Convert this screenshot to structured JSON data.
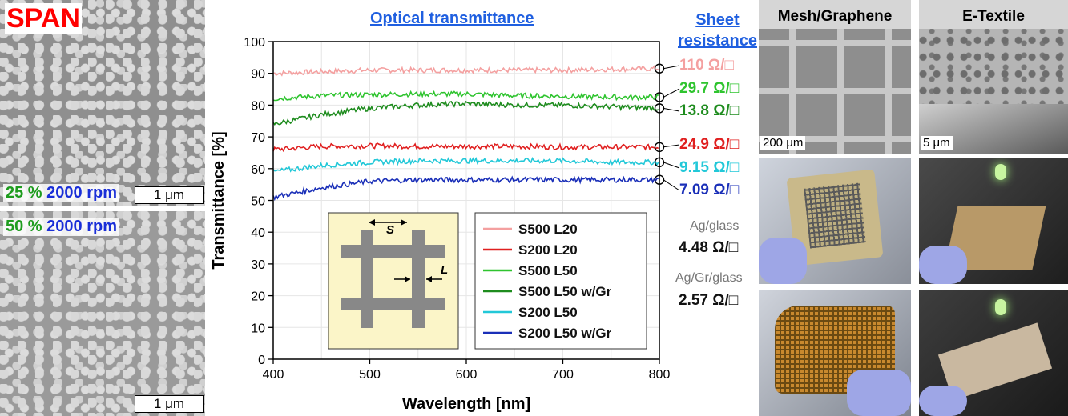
{
  "left": {
    "title": "SPAN",
    "rpm_top": {
      "pct": "25 %",
      "rpm": "2000 rpm"
    },
    "rpm_bottom": {
      "pct": "50 %",
      "rpm": "2000 rpm"
    },
    "scale_top": "1 μm",
    "scale_bottom": "1 μm"
  },
  "headers": {
    "transmittance": "Optical transmittance",
    "sheet_line1": "Sheet",
    "sheet_line2": "resistance"
  },
  "sheet_resistance": [
    {
      "value": "110 Ω/□",
      "color": "#f4a0a0"
    },
    {
      "value": "29.7 Ω/□",
      "color": "#2fc42f"
    },
    {
      "value": "13.8 Ω/□",
      "color": "#1e8c1e"
    },
    {
      "value": "24.9 Ω/□",
      "color": "#e02020"
    },
    {
      "value": "9.15 Ω/□",
      "color": "#22c8d8"
    },
    {
      "value": "7.09 Ω/□",
      "color": "#1a2fb8"
    }
  ],
  "references": [
    {
      "label": "Ag/glass",
      "value": "4.48 Ω/□"
    },
    {
      "label": "Ag/Gr/glass",
      "value": "2.57 Ω/□"
    }
  ],
  "photos": {
    "mesh_title": "Mesh/Graphene",
    "etextile_title": "E-Textile",
    "mesh_scale": "200 μm",
    "etextile_scale": "5 μm"
  },
  "inset": {
    "s_label": "S",
    "l_label": "L"
  },
  "chart_data": {
    "type": "line",
    "xlabel": "Wavelength [nm]",
    "ylabel": "Transmittance [%]",
    "xlim": [
      400,
      800
    ],
    "ylim": [
      0,
      100
    ],
    "xticks": [
      400,
      500,
      600,
      700,
      800
    ],
    "yticks": [
      0,
      10,
      20,
      30,
      40,
      50,
      60,
      70,
      80,
      90,
      100
    ],
    "grid": true,
    "legend_position": "bottom-right",
    "x": [
      400,
      450,
      500,
      550,
      600,
      650,
      700,
      750,
      800
    ],
    "series": [
      {
        "name": "S500 L20",
        "color": "#f4a0a0",
        "values": [
          90,
          90.5,
          91,
          91,
          91,
          91,
          91,
          91.3,
          91.5
        ]
      },
      {
        "name": "S200 L20",
        "color": "#e02020",
        "values": [
          66,
          67,
          67.2,
          67,
          67,
          67,
          66.8,
          66.8,
          66.8
        ]
      },
      {
        "name": "S500 L50",
        "color": "#2fc42f",
        "values": [
          82,
          83,
          83.3,
          83.5,
          83.5,
          83,
          82.8,
          82.5,
          82.5
        ]
      },
      {
        "name": "S500 L50 w/Gr",
        "color": "#1e8c1e",
        "values": [
          74,
          77,
          79,
          80,
          80.5,
          80,
          80,
          79.5,
          79
        ]
      },
      {
        "name": "S200 L50",
        "color": "#22c8d8",
        "values": [
          59,
          61,
          62,
          62.5,
          62.5,
          62.5,
          62.5,
          62,
          62
        ]
      },
      {
        "name": "S200 L50 w/Gr",
        "color": "#1a2fb8",
        "values": [
          51,
          54,
          56,
          56.5,
          56.5,
          56.5,
          56.5,
          56.5,
          56.5
        ]
      }
    ]
  }
}
